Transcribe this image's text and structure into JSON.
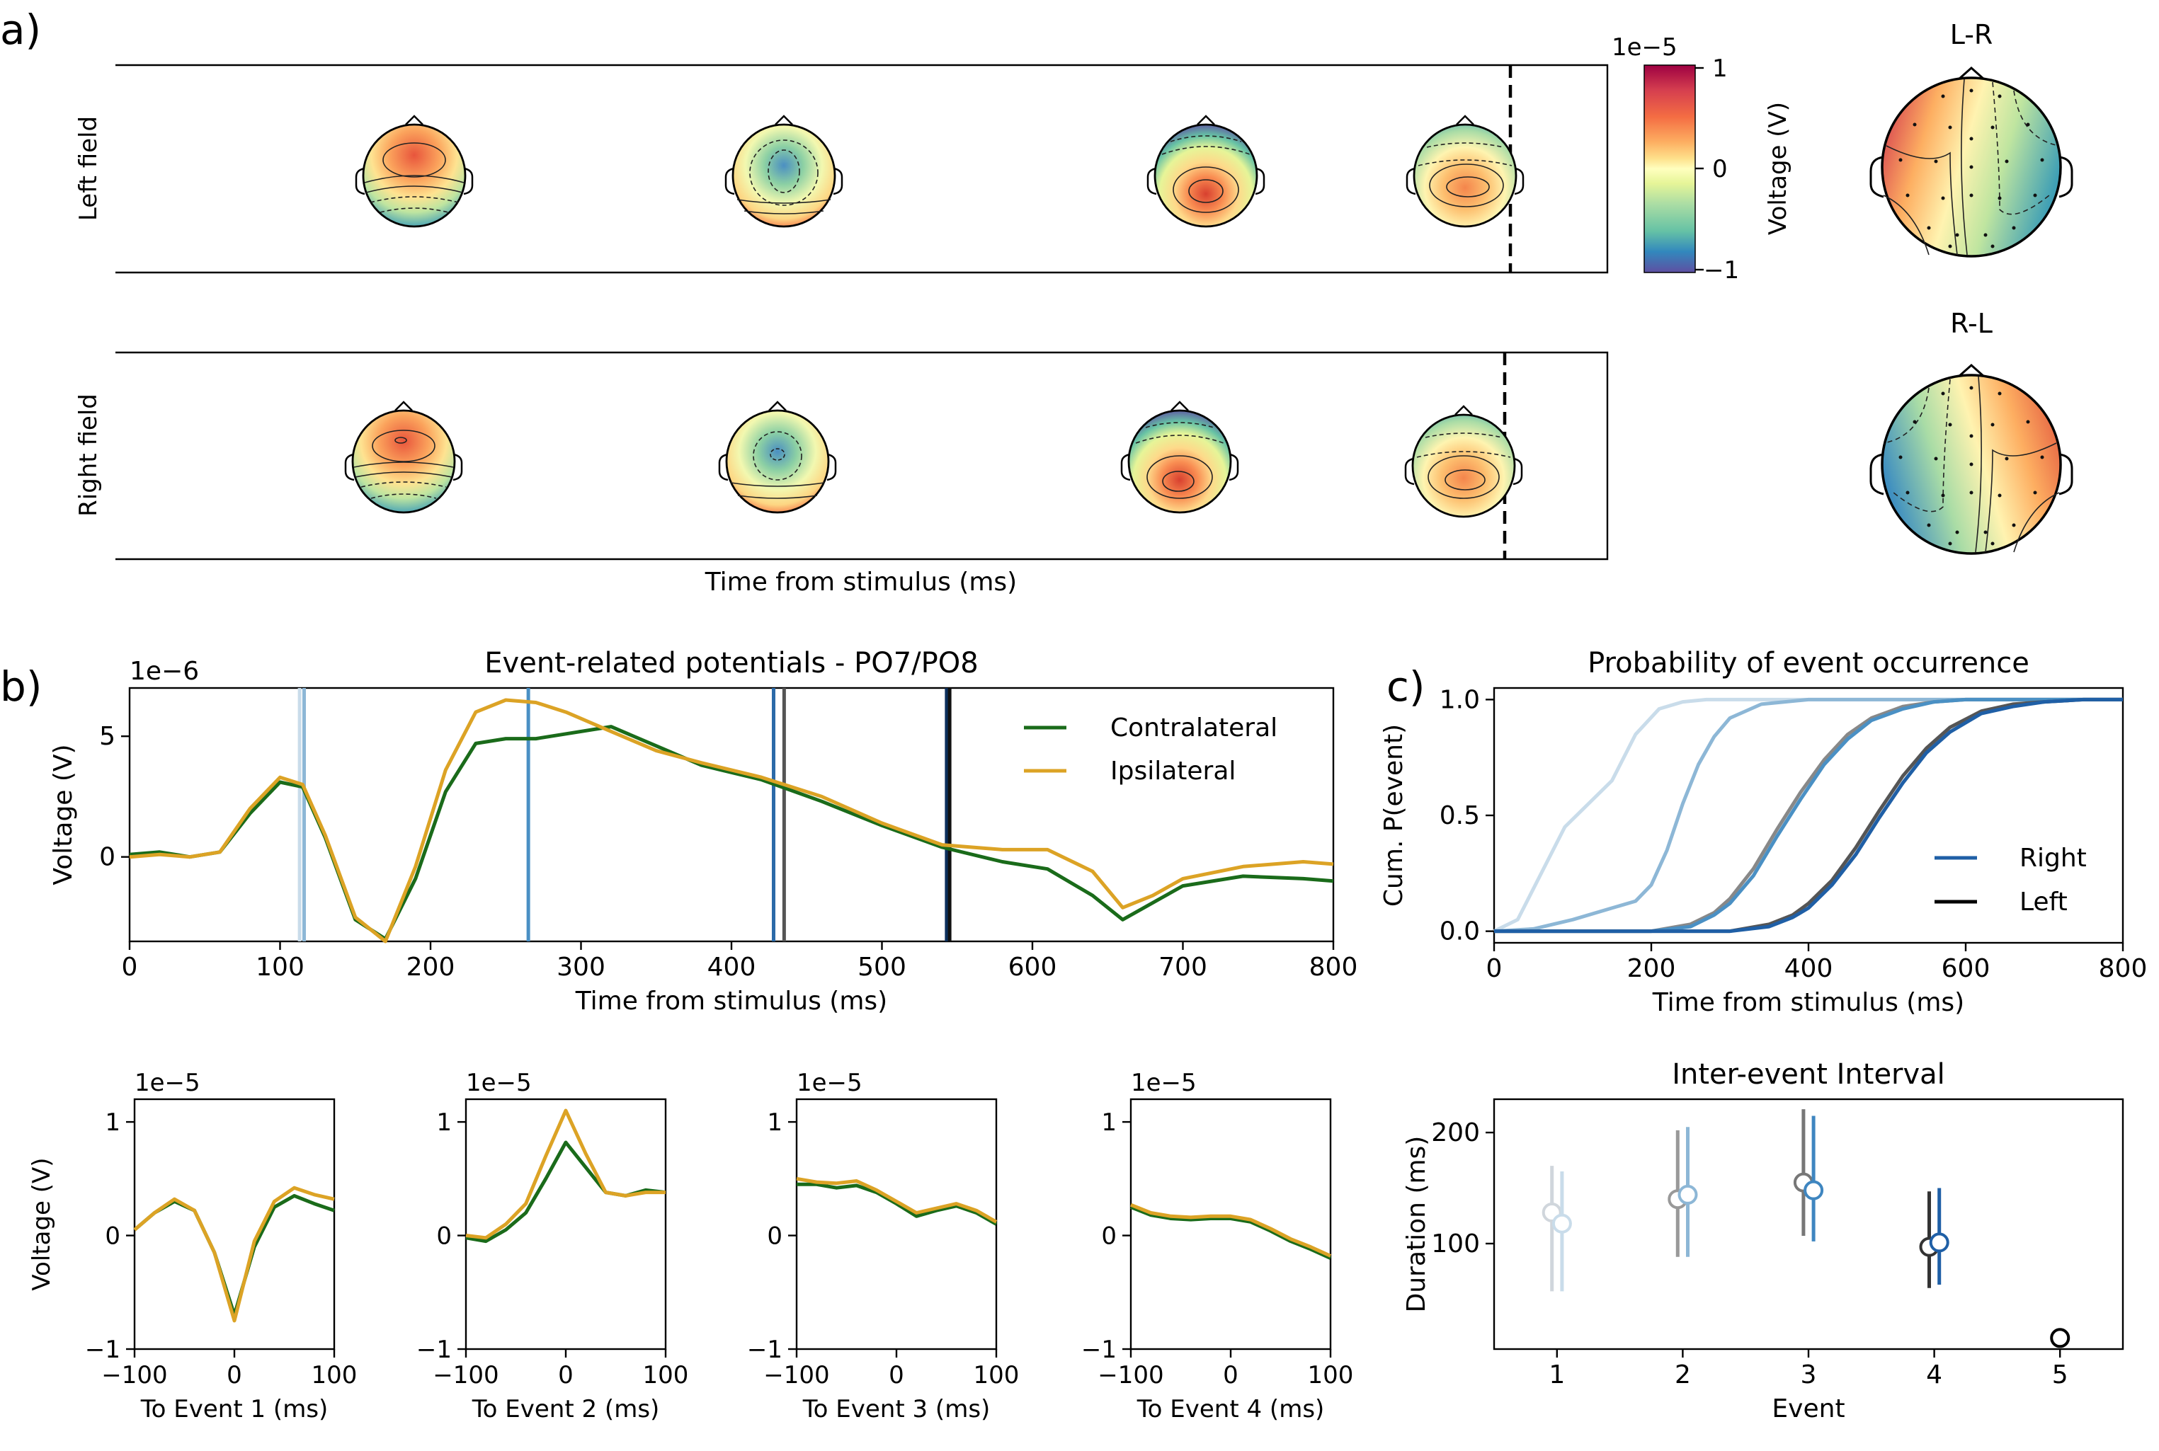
{
  "panel_labels": [
    "a)",
    "b)",
    "c)"
  ],
  "panel_a": {
    "row_labels": [
      "Left field",
      "Right field"
    ],
    "xlabel": "Time from stimulus (ms)",
    "colorbar": {
      "exponent": "1e−5",
      "label": "Voltage (V)",
      "ticks": [
        "1",
        "0",
        "−1"
      ],
      "colormap": "Spectral_r"
    },
    "diff_titles": [
      "L-R",
      "R-L"
    ]
  },
  "chart_data": [
    {
      "type": "line",
      "title": "Event-related potentials - PO7/PO8",
      "xlabel": "Time from stimulus (ms)",
      "ylabel": "Voltage (V)",
      "exponent": "1e−6",
      "xlim": [
        0,
        800
      ],
      "ylim": [
        -3.5,
        7
      ],
      "xticks": [
        0,
        100,
        200,
        300,
        400,
        500,
        600,
        700,
        800
      ],
      "yticks": [
        0,
        5
      ],
      "legend": "top-right",
      "series": [
        {
          "name": "Contralateral",
          "color": "#1a6b1a",
          "x": [
            0,
            20,
            40,
            60,
            80,
            100,
            115,
            130,
            150,
            170,
            190,
            210,
            230,
            250,
            270,
            290,
            320,
            350,
            380,
            420,
            460,
            500,
            540,
            580,
            610,
            640,
            660,
            680,
            700,
            740,
            780,
            800
          ],
          "y": [
            0.1,
            0.2,
            0.0,
            0.2,
            1.8,
            3.1,
            2.9,
            0.8,
            -2.6,
            -3.4,
            -0.9,
            2.7,
            4.7,
            4.9,
            4.9,
            5.1,
            5.4,
            4.6,
            3.8,
            3.2,
            2.3,
            1.3,
            0.4,
            -0.2,
            -0.5,
            -1.6,
            -2.6,
            -1.9,
            -1.2,
            -0.8,
            -0.9,
            -1.0
          ]
        },
        {
          "name": "Ipsilateral",
          "color": "#dca325",
          "x": [
            0,
            20,
            40,
            60,
            80,
            100,
            115,
            130,
            150,
            170,
            190,
            210,
            230,
            250,
            270,
            290,
            320,
            350,
            380,
            420,
            460,
            500,
            540,
            580,
            610,
            640,
            660,
            680,
            700,
            740,
            780,
            800
          ],
          "y": [
            0.0,
            0.1,
            0.0,
            0.2,
            2.0,
            3.3,
            3.0,
            0.9,
            -2.5,
            -3.5,
            -0.4,
            3.6,
            6.0,
            6.5,
            6.4,
            6.0,
            5.2,
            4.4,
            3.9,
            3.3,
            2.5,
            1.4,
            0.5,
            0.3,
            0.3,
            -0.6,
            -2.1,
            -1.6,
            -0.9,
            -0.4,
            -0.2,
            -0.3
          ]
        }
      ],
      "event_lines": [
        {
          "x": 113,
          "color": "#c9dcea"
        },
        {
          "x": 116,
          "color": "#8db7d6"
        },
        {
          "x": 265,
          "color": "#4a90c4"
        },
        {
          "x": 428,
          "color": "#2b6aa8"
        },
        {
          "x": 435,
          "color": "#555555"
        },
        {
          "x": 543,
          "color": "#0c2f5c"
        },
        {
          "x": 545,
          "color": "#111111"
        }
      ]
    },
    {
      "type": "line",
      "xlabel": "To Event 1 (ms)",
      "ylabel": "Voltage (V)",
      "exponent": "1e−5",
      "xlim": [
        -100,
        100
      ],
      "ylim": [
        -1,
        1.2
      ],
      "xticks": [
        -100,
        0,
        100
      ],
      "yticks": [
        -1,
        0,
        1
      ],
      "series": [
        {
          "name": "Contralateral",
          "x": [
            -100,
            -80,
            -60,
            -40,
            -20,
            0,
            20,
            40,
            60,
            80,
            100
          ],
          "y": [
            0.05,
            0.2,
            0.3,
            0.22,
            -0.15,
            -0.7,
            -0.1,
            0.25,
            0.35,
            0.28,
            0.22
          ]
        },
        {
          "name": "Ipsilateral",
          "x": [
            -100,
            -80,
            -60,
            -40,
            -20,
            0,
            20,
            40,
            60,
            80,
            100
          ],
          "y": [
            0.05,
            0.2,
            0.32,
            0.22,
            -0.15,
            -0.75,
            -0.05,
            0.3,
            0.42,
            0.36,
            0.32
          ]
        }
      ]
    },
    {
      "type": "line",
      "xlabel": "To Event 2 (ms)",
      "exponent": "1e−5",
      "xlim": [
        -100,
        100
      ],
      "ylim": [
        -1,
        1.2
      ],
      "xticks": [
        -100,
        0,
        100
      ],
      "yticks": [
        -1,
        0,
        1
      ],
      "series": [
        {
          "name": "Contralateral",
          "x": [
            -100,
            -80,
            -60,
            -40,
            -20,
            0,
            20,
            40,
            60,
            80,
            100
          ],
          "y": [
            -0.02,
            -0.05,
            0.05,
            0.2,
            0.5,
            0.82,
            0.6,
            0.38,
            0.35,
            0.4,
            0.38
          ]
        },
        {
          "name": "Ipsilateral",
          "x": [
            -100,
            -80,
            -60,
            -40,
            -20,
            0,
            20,
            40,
            60,
            80,
            100
          ],
          "y": [
            0.0,
            -0.02,
            0.1,
            0.28,
            0.7,
            1.1,
            0.72,
            0.38,
            0.35,
            0.38,
            0.38
          ]
        }
      ]
    },
    {
      "type": "line",
      "xlabel": "To Event 3 (ms)",
      "exponent": "1e−5",
      "xlim": [
        -100,
        100
      ],
      "ylim": [
        -1,
        1.2
      ],
      "xticks": [
        -100,
        0,
        100
      ],
      "yticks": [
        -1,
        0,
        1
      ],
      "series": [
        {
          "name": "Contralateral",
          "x": [
            -100,
            -80,
            -60,
            -40,
            -20,
            0,
            20,
            40,
            60,
            80,
            100
          ],
          "y": [
            0.45,
            0.45,
            0.42,
            0.44,
            0.38,
            0.28,
            0.17,
            0.22,
            0.26,
            0.2,
            0.1
          ]
        },
        {
          "name": "Ipsilateral",
          "x": [
            -100,
            -80,
            -60,
            -40,
            -20,
            0,
            20,
            40,
            60,
            80,
            100
          ],
          "y": [
            0.5,
            0.47,
            0.46,
            0.48,
            0.4,
            0.3,
            0.2,
            0.24,
            0.28,
            0.22,
            0.12
          ]
        }
      ]
    },
    {
      "type": "line",
      "xlabel": "To Event 4 (ms)",
      "exponent": "1e−5",
      "xlim": [
        -100,
        100
      ],
      "ylim": [
        -1,
        1.2
      ],
      "xticks": [
        -100,
        0,
        100
      ],
      "yticks": [
        -1,
        0,
        1
      ],
      "series": [
        {
          "name": "Contralateral",
          "x": [
            -100,
            -80,
            -60,
            -40,
            -20,
            0,
            20,
            40,
            60,
            80,
            100
          ],
          "y": [
            0.25,
            0.18,
            0.15,
            0.14,
            0.15,
            0.15,
            0.12,
            0.04,
            -0.05,
            -0.12,
            -0.2
          ]
        },
        {
          "name": "Ipsilateral",
          "x": [
            -100,
            -80,
            -60,
            -40,
            -20,
            0,
            20,
            40,
            60,
            80,
            100
          ],
          "y": [
            0.27,
            0.2,
            0.17,
            0.16,
            0.17,
            0.17,
            0.14,
            0.06,
            -0.03,
            -0.1,
            -0.18
          ]
        }
      ]
    },
    {
      "type": "line",
      "title": "Probability of event occurrence",
      "xlabel": "Time from stimulus (ms)",
      "ylabel": "Cum. P(event)",
      "xlim": [
        0,
        800
      ],
      "ylim": [
        -0.05,
        1.05
      ],
      "xticks": [
        0,
        200,
        400,
        600,
        800
      ],
      "yticks": [
        0.0,
        0.5,
        1.0
      ],
      "legend": "lower-right",
      "legend_entries": [
        {
          "name": "Right",
          "color": "#1f5fa6"
        },
        {
          "name": "Left",
          "color": "#000000"
        }
      ],
      "series": [
        {
          "color": "#c9dcea",
          "x": [
            0,
            30,
            60,
            90,
            120,
            150,
            180,
            210,
            240,
            270,
            300,
            400,
            500,
            600,
            700,
            800
          ],
          "y": [
            0,
            0.05,
            0.25,
            0.45,
            0.55,
            0.65,
            0.85,
            0.96,
            0.99,
            1,
            1,
            1,
            1,
            1,
            1,
            1
          ]
        },
        {
          "color": "#8db7d6",
          "x": [
            0,
            50,
            100,
            150,
            180,
            200,
            220,
            240,
            260,
            280,
            300,
            340,
            400,
            500,
            600,
            800
          ],
          "y": [
            0,
            0.01,
            0.05,
            0.1,
            0.13,
            0.2,
            0.35,
            0.55,
            0.72,
            0.84,
            0.92,
            0.98,
            1,
            1,
            1,
            1
          ]
        },
        {
          "color": "#888888",
          "x": [
            0,
            200,
            250,
            280,
            300,
            330,
            360,
            390,
            420,
            450,
            480,
            520,
            560,
            600,
            700,
            800
          ],
          "y": [
            0,
            0,
            0.03,
            0.08,
            0.14,
            0.27,
            0.44,
            0.6,
            0.74,
            0.85,
            0.92,
            0.97,
            0.99,
            1,
            1,
            1
          ]
        },
        {
          "color": "#4a90c4",
          "x": [
            0,
            200,
            250,
            280,
            300,
            330,
            360,
            390,
            420,
            450,
            480,
            520,
            560,
            600,
            700,
            800
          ],
          "y": [
            0,
            0,
            0.02,
            0.07,
            0.12,
            0.24,
            0.41,
            0.57,
            0.72,
            0.83,
            0.91,
            0.96,
            0.99,
            1,
            1,
            1
          ]
        },
        {
          "color": "#555555",
          "x": [
            0,
            300,
            350,
            380,
            400,
            430,
            460,
            490,
            520,
            550,
            580,
            620,
            660,
            700,
            750,
            800
          ],
          "y": [
            0,
            0,
            0.03,
            0.07,
            0.12,
            0.22,
            0.36,
            0.52,
            0.67,
            0.79,
            0.88,
            0.95,
            0.98,
            0.99,
            1,
            1
          ]
        },
        {
          "color": "#1f5fa6",
          "x": [
            0,
            300,
            350,
            380,
            400,
            430,
            460,
            490,
            520,
            550,
            580,
            620,
            660,
            700,
            750,
            800
          ],
          "y": [
            0,
            0,
            0.02,
            0.06,
            0.1,
            0.2,
            0.33,
            0.49,
            0.64,
            0.77,
            0.86,
            0.94,
            0.97,
            0.99,
            1,
            1
          ]
        }
      ]
    },
    {
      "type": "scatter",
      "title": "Inter-event Interval",
      "xlabel": "Event",
      "ylabel": "Duration (ms)",
      "xlim": [
        0.5,
        5.5
      ],
      "ylim": [
        5,
        230
      ],
      "xticks": [
        1,
        2,
        3,
        4,
        5
      ],
      "yticks": [
        100,
        200
      ],
      "points": [
        {
          "x": 0.96,
          "y": 128,
          "low": 57,
          "high": 170,
          "color": "#d0d6dc"
        },
        {
          "x": 1.04,
          "y": 118,
          "low": 57,
          "high": 165,
          "color": "#c9dcea"
        },
        {
          "x": 1.96,
          "y": 140,
          "low": 88,
          "high": 202,
          "color": "#999999"
        },
        {
          "x": 2.04,
          "y": 144,
          "low": 88,
          "high": 205,
          "color": "#8db7d6"
        },
        {
          "x": 2.96,
          "y": 155,
          "low": 107,
          "high": 221,
          "color": "#777777"
        },
        {
          "x": 3.04,
          "y": 148,
          "low": 102,
          "high": 215,
          "color": "#3f86c0"
        },
        {
          "x": 3.96,
          "y": 97,
          "low": 60,
          "high": 147,
          "color": "#333333"
        },
        {
          "x": 4.04,
          "y": 101,
          "low": 63,
          "high": 150,
          "color": "#1f5fa6"
        },
        {
          "x": 5.0,
          "y": 15,
          "low": 15,
          "high": 15,
          "color": "#000000"
        }
      ]
    }
  ]
}
